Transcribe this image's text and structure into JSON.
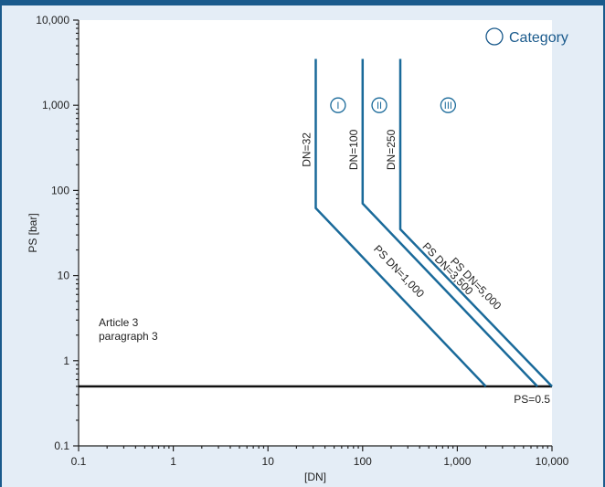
{
  "chart_data": {
    "type": "line",
    "xscale": "log",
    "yscale": "log",
    "xlim": [
      0.1,
      10000
    ],
    "ylim": [
      0.1,
      10000
    ],
    "xlabel": "[DN]",
    "ylabel": "PS [bar]",
    "x_ticks": [
      0.1,
      1,
      10,
      100,
      1000,
      10000
    ],
    "x_tick_labels": [
      "0.1",
      "1",
      "10",
      "100",
      "1,000",
      "10,000"
    ],
    "y_ticks": [
      0.1,
      1,
      10,
      100,
      1000,
      10000
    ],
    "y_tick_labels": [
      "0.1",
      "1",
      "10",
      "100",
      "1,000",
      "10,000"
    ],
    "grid": false,
    "legend": {
      "label": "Category",
      "placement": "top-right"
    },
    "series": [
      {
        "name": "PS DN=1,000",
        "vertical_label": "DN=32",
        "x": [
          32,
          32,
          2000
        ],
        "y": [
          3500,
          62,
          0.5
        ]
      },
      {
        "name": "PS DN=3,500",
        "vertical_label": "DN=100",
        "x": [
          100,
          100,
          7000
        ],
        "y": [
          3500,
          70,
          0.5
        ]
      },
      {
        "name": "PS DN=5,000",
        "vertical_label": "DN=250",
        "x": [
          250,
          250,
          10000
        ],
        "y": [
          3500,
          35,
          0.5
        ]
      }
    ],
    "baseline": {
      "label": "PS=0.5",
      "y": 0.5,
      "x": [
        0.1,
        10000
      ]
    },
    "categories": [
      {
        "label": "I",
        "x": 55,
        "y": 1000
      },
      {
        "label": "II",
        "x": 150,
        "y": 1000
      },
      {
        "label": "III",
        "x": 800,
        "y": 1000
      }
    ],
    "annotation": {
      "lines": [
        "Article 3",
        "paragraph 3"
      ],
      "x": 0.2,
      "y": 3
    }
  }
}
